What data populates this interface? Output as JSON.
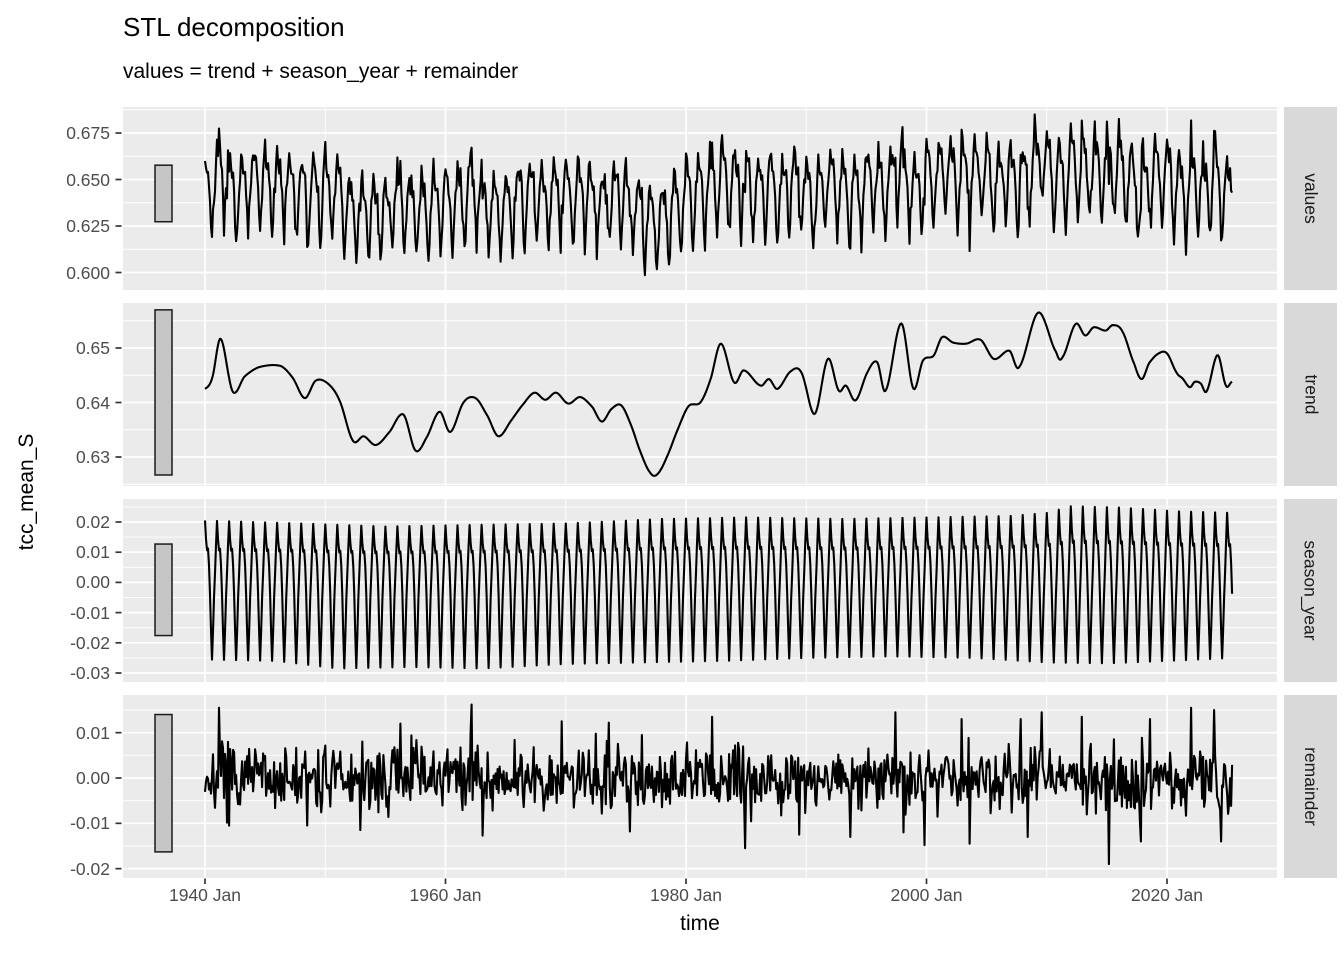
{
  "title": "STL decomposition",
  "subtitle": "values = trend + season_year + remainder",
  "x_axis": {
    "title": "time",
    "tick_labels": [
      "1940 Jan",
      "1960 Jan",
      "1980 Jan",
      "2000 Jan",
      "2020 Jan"
    ],
    "tick_years": [
      1940,
      1960,
      1980,
      2000,
      2020
    ]
  },
  "y_axis": {
    "title": "tcc_mean_S"
  },
  "panels": [
    {
      "name": "values",
      "strip_label": "values",
      "y_tick_labels": [
        "0.600",
        "0.625",
        "0.650",
        "0.675"
      ],
      "y_tick_values": [
        0.6,
        0.625,
        0.65,
        0.675
      ]
    },
    {
      "name": "trend",
      "strip_label": "trend",
      "y_tick_labels": [
        "0.63",
        "0.64",
        "0.65"
      ],
      "y_tick_values": [
        0.63,
        0.64,
        0.65
      ]
    },
    {
      "name": "season_year",
      "strip_label": "season_year",
      "y_tick_labels": [
        "-0.03",
        "-0.02",
        "-0.01",
        "0.00",
        "0.01",
        "0.02"
      ],
      "y_tick_values": [
        -0.03,
        -0.02,
        -0.01,
        0.0,
        0.01,
        0.02
      ]
    },
    {
      "name": "remainder",
      "strip_label": "remainder",
      "y_tick_labels": [
        "-0.02",
        "-0.01",
        "0.00",
        "0.01"
      ],
      "y_tick_values": [
        -0.02,
        -0.01,
        0.0,
        0.01
      ]
    }
  ],
  "colors": {
    "background": "#FFFFFF",
    "panel_background": "#EBEBEB",
    "strip_background": "#D9D9D9",
    "gridline": "#FFFFFF",
    "line": "#000000",
    "axis_text": "#4D4D4D",
    "tick_mark": "#333333",
    "title_text": "#000000",
    "scale_bar_fill": "#C6C6C6",
    "scale_bar_border": "#1A1A1A"
  },
  "chart_data": {
    "type": "line",
    "chart_kind": "stl_decomposition_facets",
    "title": "STL decomposition",
    "subtitle": "values = trend + season_year + remainder",
    "xlabel": "time",
    "ylabel": "tcc_mean_S",
    "x": {
      "start_year": 1940,
      "start_month": "Jan",
      "end_year": 2025,
      "end_month": "May",
      "frequency_per_year": 12,
      "major_tick_years": [
        1940,
        1960,
        1980,
        2000,
        2020
      ],
      "minor_tick_years": [
        1950,
        1970,
        1990,
        2010
      ]
    },
    "panels": [
      {
        "name": "values",
        "formula": "trend + season_year + remainder",
        "ylim": [
          0.5906,
          0.689
        ],
        "yticks": [
          0.6,
          0.625,
          0.65,
          0.675
        ],
        "scale_bar_range": [
          0.6273,
          0.6577
        ]
      },
      {
        "name": "trend",
        "ylim": [
          0.6247,
          0.6583
        ],
        "yticks": [
          0.63,
          0.64,
          0.65
        ],
        "scale_bar_range": [
          0.6267,
          0.657
        ],
        "control_points_t": [
          1940.0,
          1940.6,
          1941.3,
          1942.3,
          1943.3,
          1944.5,
          1946.3,
          1947.3,
          1948.3,
          1949.2,
          1950.2,
          1951.2,
          1952.3,
          1953.2,
          1954.2,
          1955.3,
          1956.5,
          1957.5,
          1958.4,
          1959.5,
          1960.4,
          1961.5,
          1962.5,
          1963.5,
          1964.4,
          1965.5,
          1966.5,
          1967.4,
          1968.3,
          1969.2,
          1970.2,
          1971.2,
          1972.2,
          1973.0,
          1973.8,
          1974.6,
          1975.4,
          1976.2,
          1977.0,
          1977.6,
          1978.4,
          1979.3,
          1980.2,
          1981.2,
          1982.0,
          1982.9,
          1984.0,
          1984.8,
          1986.2,
          1986.9,
          1987.6,
          1988.7,
          1989.6,
          1990.7,
          1991.8,
          1992.7,
          1993.3,
          1994.1,
          1995.1,
          1995.9,
          1996.6,
          1997.9,
          1998.9,
          1999.7,
          2000.6,
          2001.3,
          2002.2,
          2003.3,
          2004.5,
          2005.6,
          2006.9,
          2007.7,
          2009.3,
          2010.8,
          2011.3,
          2012.4,
          2013.2,
          2013.9,
          2014.9,
          2015.5,
          2016.3,
          2017.3,
          2017.9,
          2018.5,
          2019.3,
          2020.0,
          2020.8,
          2021.3,
          2021.9,
          2022.3,
          2022.8,
          2023.3,
          2024.2,
          2024.9,
          2025.4
        ],
        "control_points_v": [
          0.6425,
          0.6445,
          0.6517,
          0.642,
          0.6448,
          0.6465,
          0.6467,
          0.6445,
          0.6408,
          0.644,
          0.6435,
          0.6403,
          0.633,
          0.6338,
          0.6322,
          0.6345,
          0.6378,
          0.6312,
          0.6335,
          0.6383,
          0.6346,
          0.64,
          0.6408,
          0.6375,
          0.6338,
          0.6368,
          0.6398,
          0.6418,
          0.6405,
          0.6418,
          0.6398,
          0.641,
          0.6392,
          0.6365,
          0.6388,
          0.6395,
          0.636,
          0.631,
          0.6272,
          0.6268,
          0.63,
          0.635,
          0.6393,
          0.64,
          0.644,
          0.6508,
          0.6437,
          0.6459,
          0.6431,
          0.6443,
          0.6425,
          0.6457,
          0.6455,
          0.6379,
          0.648,
          0.6422,
          0.6431,
          0.6404,
          0.6456,
          0.6474,
          0.6422,
          0.6545,
          0.6426,
          0.6477,
          0.6486,
          0.652,
          0.651,
          0.6508,
          0.6515,
          0.648,
          0.6495,
          0.6465,
          0.6565,
          0.6492,
          0.6483,
          0.6544,
          0.6523,
          0.6538,
          0.6532,
          0.6542,
          0.653,
          0.647,
          0.6443,
          0.6472,
          0.649,
          0.649,
          0.6455,
          0.6444,
          0.6428,
          0.6438,
          0.6435,
          0.6421,
          0.6487,
          0.6431,
          0.6438
        ]
      },
      {
        "name": "season_year",
        "ylim": [
          -0.033,
          0.0278
        ],
        "yticks": [
          -0.03,
          -0.02,
          -0.01,
          0.0,
          0.01,
          0.02
        ],
        "scale_bar_range": [
          -0.0176,
          0.0127
        ],
        "monthly_pattern_normalized": [
          1.0,
          0.7,
          0.52,
          0.55,
          0.28,
          -0.15,
          -0.62,
          -1.0,
          -0.64,
          -0.2,
          0.15,
          0.6
        ],
        "peak_envelope_t": [
          1940,
          1948,
          1955,
          1962,
          1970,
          1978,
          1985,
          1993,
          2000,
          2007,
          2010,
          2012,
          2016,
          2021,
          2025.5
        ],
        "peak_envelope_v": [
          0.0205,
          0.0195,
          0.0185,
          0.019,
          0.0195,
          0.021,
          0.0215,
          0.021,
          0.0215,
          0.022,
          0.023,
          0.0252,
          0.0248,
          0.0235,
          0.023
        ],
        "trough_envelope_t": [
          1940,
          1946,
          1951,
          1957,
          1963,
          1970,
          1976,
          1983,
          1990,
          1997,
          2004,
          2010,
          2015,
          2020,
          2025.5
        ],
        "trough_envelope_v": [
          0.0255,
          0.026,
          0.0285,
          0.028,
          0.0285,
          0.027,
          0.0265,
          0.026,
          0.025,
          0.0245,
          0.025,
          0.0265,
          0.0268,
          0.026,
          0.025
        ]
      },
      {
        "name": "remainder",
        "ylim": [
          -0.0222,
          0.0169
        ],
        "yticks": [
          -0.02,
          -0.01,
          0.0,
          0.01
        ],
        "scale_bar_range": [
          -0.0163,
          0.014
        ],
        "noise_sigma": 0.0034,
        "noise_seed": 7,
        "spikes_t": [
          1941.17,
          1942.0,
          1948.5,
          1952.9,
          1956.25,
          1962.17,
          1969.7,
          1973.6,
          1975.3,
          1982.2,
          1984.9,
          1989.4,
          1993.7,
          1997.4,
          1998.1,
          2002.9,
          2003.6,
          2007.8,
          2008.4,
          2009.6,
          2012.9,
          2015.2,
          2017.8,
          2018.6,
          2022.0,
          2023.9,
          2024.5
        ],
        "spikes_v": [
          0.0155,
          -0.0105,
          -0.0105,
          -0.0115,
          0.012,
          0.0162,
          0.0125,
          0.0122,
          -0.0118,
          0.0135,
          -0.0155,
          -0.0125,
          -0.013,
          0.0145,
          -0.012,
          0.013,
          -0.0145,
          0.013,
          -0.013,
          0.0145,
          0.0135,
          -0.019,
          -0.014,
          0.013,
          0.0155,
          0.015,
          -0.014
        ]
      }
    ]
  }
}
